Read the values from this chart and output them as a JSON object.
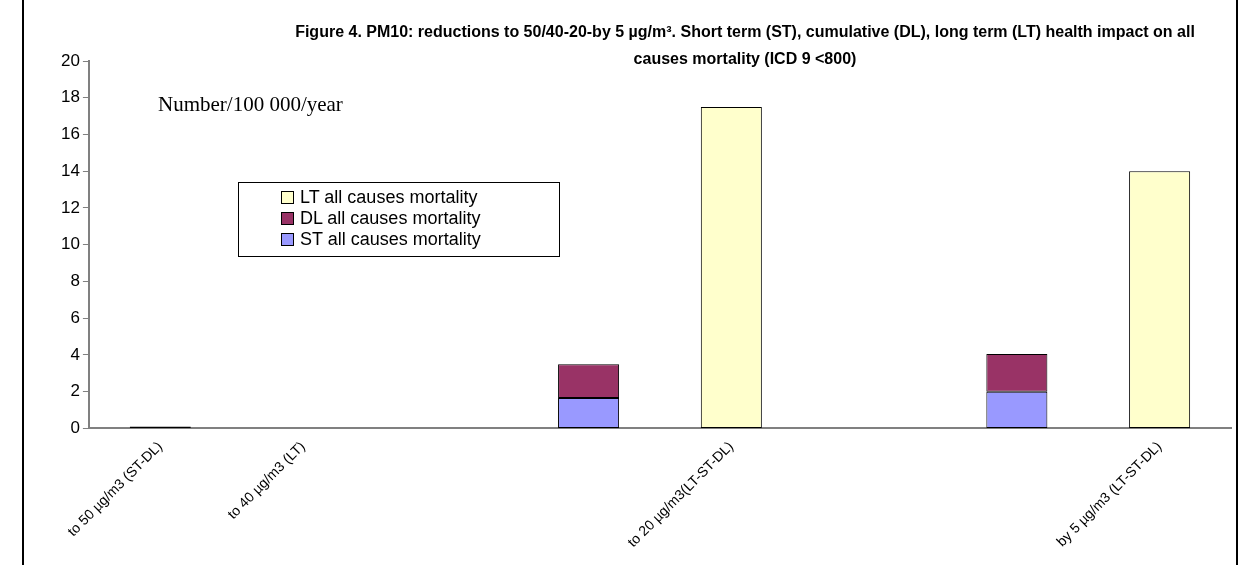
{
  "chart_data": {
    "type": "bar",
    "title": "Figure 4. PM10: reductions to 50/40-20-by 5 µg/m³.  Short term (ST), cumulative (DL), long term (LT) health impact on all causes mortality (ICD 9 <800)",
    "ylabel": "Number/100 000/year",
    "categories": [
      "to 50 µg/m3 (ST-DL)",
      "to 40 µg/m3 (LT)",
      null,
      null,
      "to 20 µg/m3(LT-ST-DL)",
      null,
      null,
      "by 5 µg/m3 (LT-ST-DL)"
    ],
    "stacked": true,
    "series": [
      {
        "name": "ST all causes mortality",
        "color": "#9999ff",
        "colors": [
          "#000000",
          "#9999ff",
          "#9999ff",
          "#9999ff",
          "#9999ff",
          "#9999ff",
          "#9999ff",
          "#9999ff"
        ],
        "values": [
          0.1,
          null,
          null,
          1.65,
          null,
          null,
          2.0,
          null
        ]
      },
      {
        "name": "DL all causes mortality",
        "color": "#993366",
        "values": [
          null,
          null,
          null,
          1.85,
          null,
          null,
          2.05,
          null
        ]
      },
      {
        "name": "LT all causes mortality",
        "color": "#ffffcc",
        "values": [
          null,
          null,
          null,
          null,
          17.5,
          null,
          null,
          14.0
        ]
      }
    ],
    "ylim": [
      0,
      20
    ],
    "yticks": [
      0,
      2,
      4,
      6,
      8,
      10,
      12,
      14,
      16,
      18,
      20
    ],
    "grid": false,
    "legend": "left"
  }
}
